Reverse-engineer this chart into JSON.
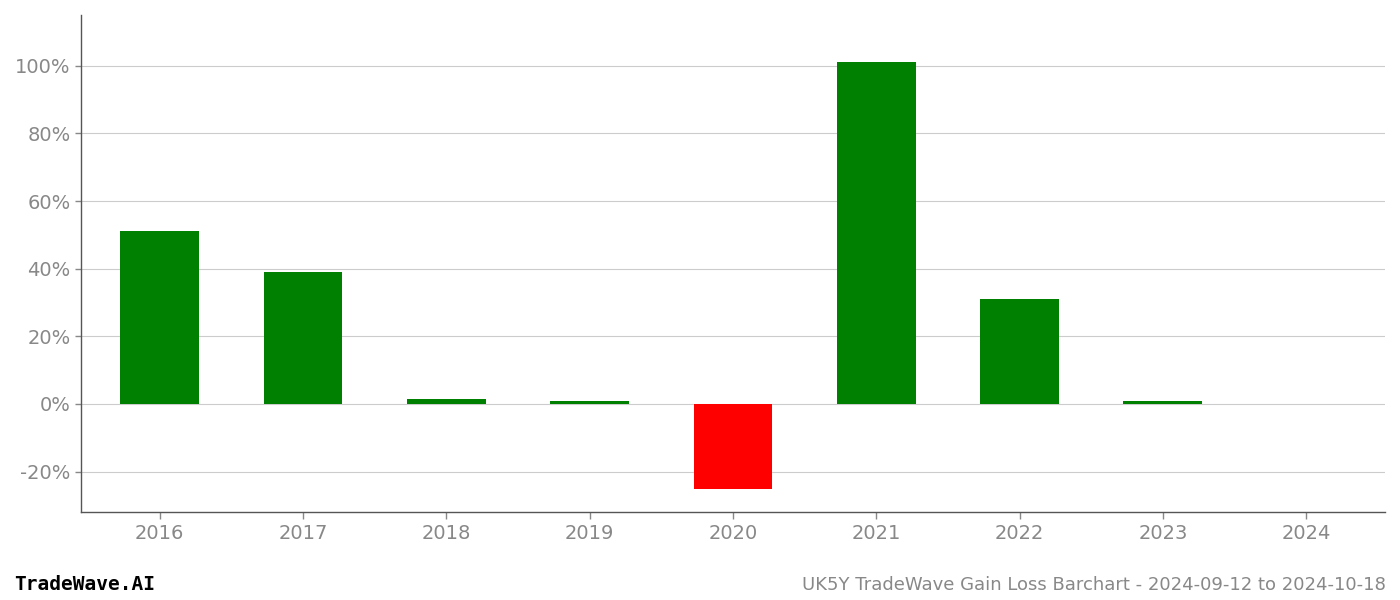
{
  "years": [
    2016,
    2017,
    2018,
    2019,
    2020,
    2021,
    2022,
    2023,
    2024
  ],
  "values": [
    0.51,
    0.39,
    0.015,
    0.01,
    -0.25,
    1.01,
    0.31,
    0.01,
    0.0
  ],
  "colors": [
    "#008000",
    "#008000",
    "#008000",
    "#008000",
    "#ff0000",
    "#008000",
    "#008000",
    "#008000",
    "#008000"
  ],
  "title": "UK5Y TradeWave Gain Loss Barchart - 2024-09-12 to 2024-10-18",
  "watermark": "TradeWave.AI",
  "ylim_min": -0.32,
  "ylim_max": 1.15,
  "yticks": [
    -0.2,
    0.0,
    0.2,
    0.4,
    0.6,
    0.8,
    1.0
  ],
  "background_color": "#ffffff",
  "grid_color": "#cccccc",
  "bar_width": 0.55,
  "title_fontsize": 13,
  "watermark_fontsize": 14,
  "tick_fontsize": 14,
  "spine_color": "#555555"
}
